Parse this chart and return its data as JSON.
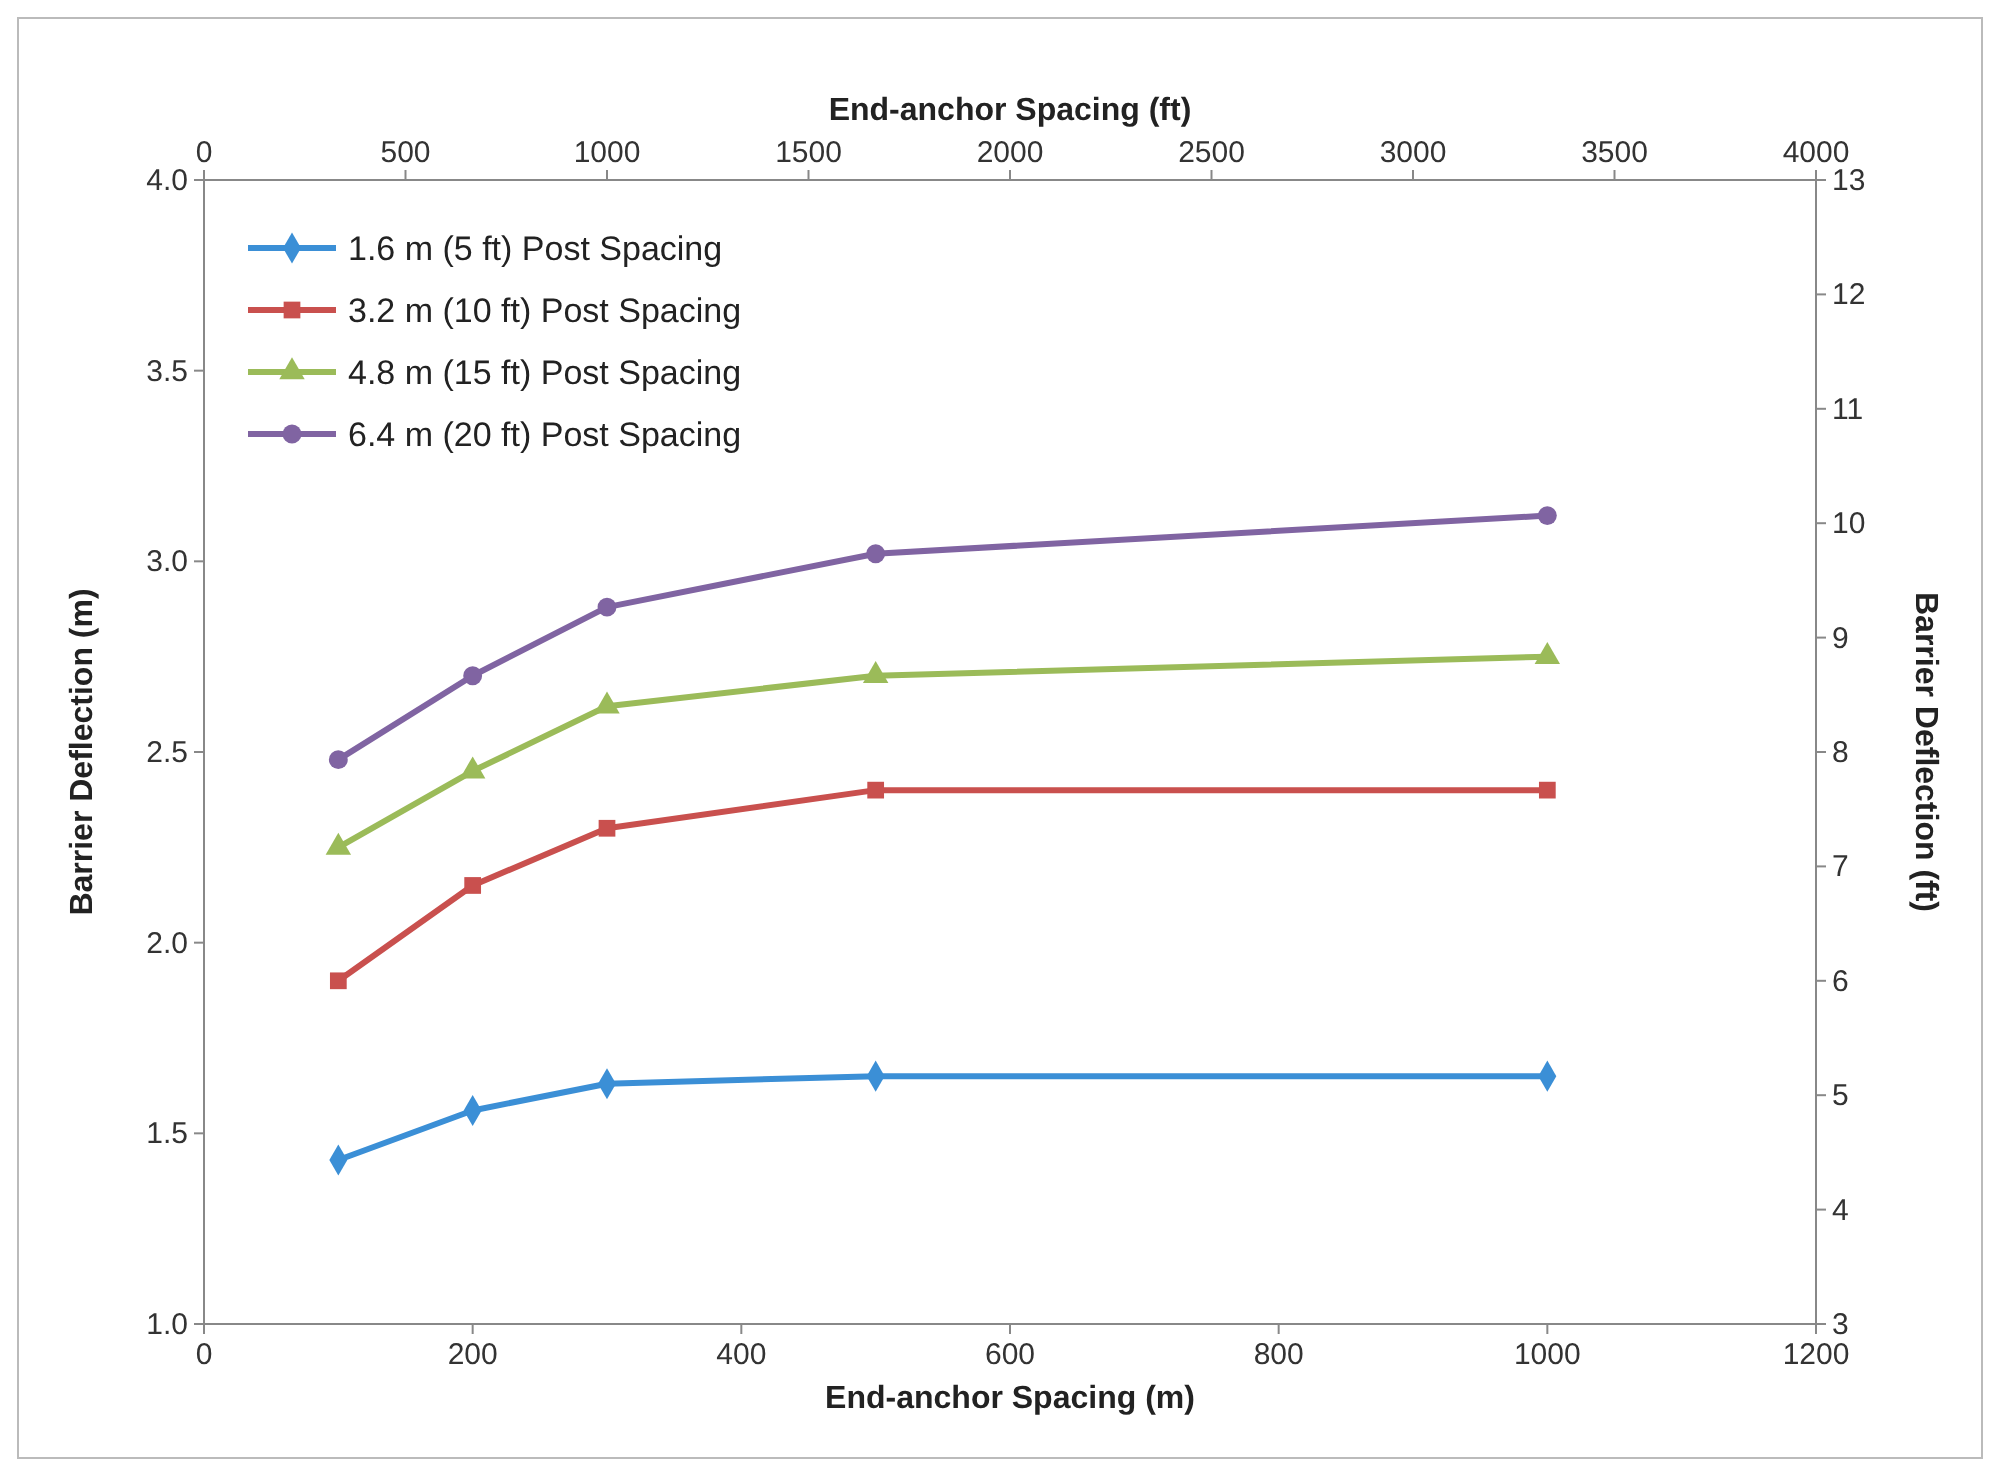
{
  "chart_data": {
    "type": "line",
    "xlabel": "End-anchor Spacing (m)",
    "ylabel": "Barrier Deflection (m)",
    "y2label": "Barrier Deflection (ft)",
    "x2label": "End-anchor Spacing (ft)",
    "x": [
      100,
      200,
      300,
      500,
      1000
    ],
    "xlim": [
      0,
      1200
    ],
    "xticks": [
      0,
      200,
      400,
      600,
      800,
      1000,
      1200
    ],
    "ylim": [
      1.0,
      4.0
    ],
    "yticks": [
      {
        "value": 1.0,
        "label": "1.0"
      },
      {
        "value": 1.5,
        "label": "1.5"
      },
      {
        "value": 2.0,
        "label": "2.0"
      },
      {
        "value": 2.5,
        "label": "2.5"
      },
      {
        "value": 3.0,
        "label": "3.0"
      },
      {
        "value": 3.5,
        "label": "3.5"
      },
      {
        "value": 4.0,
        "label": "4.0"
      }
    ],
    "x2lim": [
      0,
      4000
    ],
    "x2ticks": [
      0,
      500,
      1000,
      1500,
      2000,
      2500,
      3000,
      3500,
      4000
    ],
    "y2lim": [
      3,
      13
    ],
    "y2ticks": [
      3,
      4,
      5,
      6,
      7,
      8,
      9,
      10,
      11,
      12,
      13
    ],
    "grid": false,
    "legend": "top left",
    "line_style": "solid",
    "series": [
      {
        "name": "1.6 m (5 ft) Post Spacing",
        "color": "#3b8fd6",
        "marker": "diamond",
        "values": [
          1.43,
          1.56,
          1.63,
          1.65,
          1.65
        ]
      },
      {
        "name": "3.2 m (10 ft) Post Spacing",
        "color": "#c9504e",
        "marker": "square",
        "values": [
          1.9,
          2.15,
          2.3,
          2.4,
          2.4
        ]
      },
      {
        "name": "4.8 m (15 ft) Post Spacing",
        "color": "#9bbb59",
        "marker": "triangle",
        "values": [
          2.25,
          2.45,
          2.62,
          2.7,
          2.75
        ]
      },
      {
        "name": "6.4 m (20 ft) Post Spacing",
        "color": "#8064a2",
        "marker": "circle",
        "values": [
          2.48,
          2.7,
          2.88,
          3.02,
          3.12
        ]
      }
    ]
  }
}
